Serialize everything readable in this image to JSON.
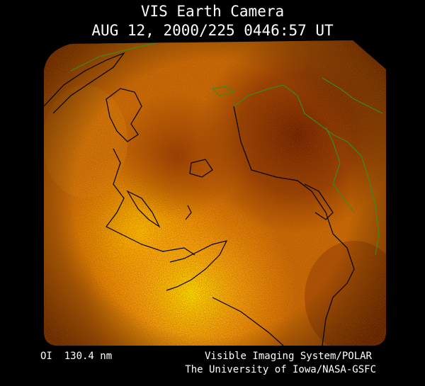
{
  "header": {
    "title": "VIS Earth Camera",
    "timestamp": "AUG 12, 2000/225 0446:57 UT"
  },
  "footer": {
    "wavelength": "OI  130.4 nm",
    "instrument": "Visible Imaging System/POLAR",
    "institution": "The University of Iowa/NASA-GSFC"
  }
}
